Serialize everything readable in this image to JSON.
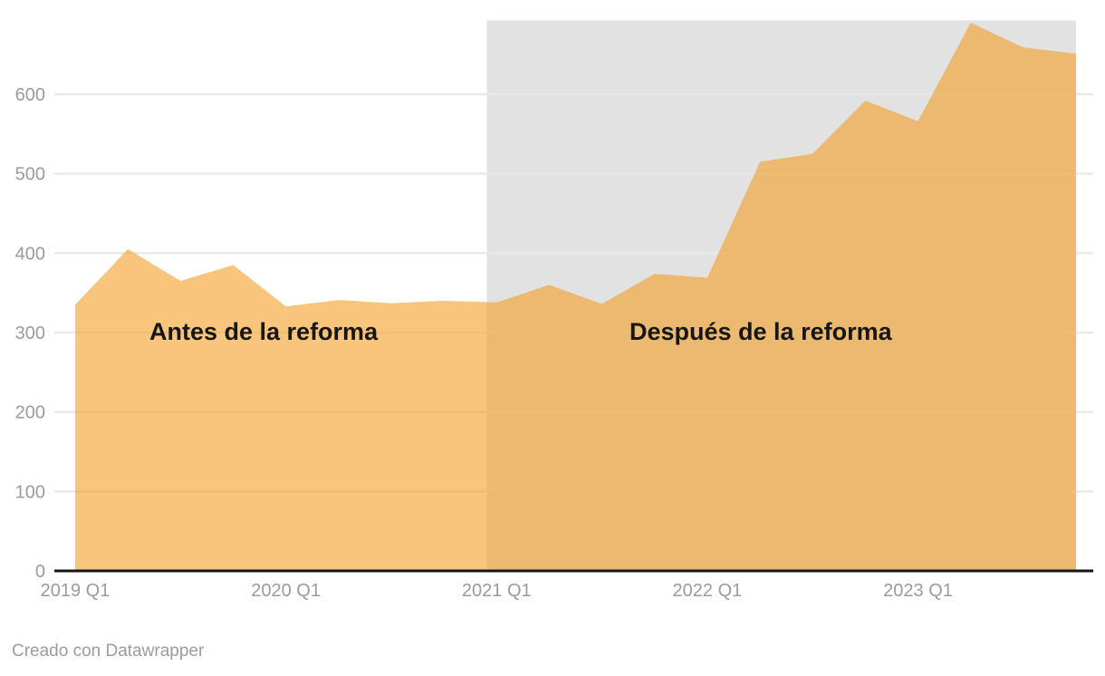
{
  "page": {
    "background_color": "#ffffff"
  },
  "footer": {
    "attribution": "Creado con Datawrapper"
  },
  "chart_data": {
    "type": "area",
    "categories": [
      "2019 Q1",
      "2019 Q2",
      "2019 Q3",
      "2019 Q4",
      "2020 Q1",
      "2020 Q2",
      "2020 Q3",
      "2020 Q4",
      "2021 Q1",
      "2021 Q2",
      "2021 Q3",
      "2021 Q4",
      "2022 Q1",
      "2022 Q2",
      "2022 Q3",
      "2022 Q4",
      "2023 Q1",
      "2023 Q2",
      "2023 Q3",
      "2023 Q4"
    ],
    "values": [
      335,
      405,
      365,
      385,
      333,
      341,
      337,
      340,
      338,
      360,
      336,
      374,
      369,
      515,
      525,
      592,
      566,
      690,
      659,
      651
    ],
    "x_tick_labels": [
      "2019 Q1",
      "2020 Q1",
      "2021 Q1",
      "2022 Q1",
      "2023 Q1"
    ],
    "y_ticks": [
      0,
      100,
      200,
      300,
      400,
      500,
      600
    ],
    "ylim": [
      0,
      693
    ],
    "grid": true,
    "legend": "none",
    "title": "",
    "xlabel": "",
    "ylabel": "",
    "area_color": "#F39E26",
    "area_opacity": 0.6,
    "highlight_range": {
      "from": "2021 Q1",
      "to": "2023 Q4",
      "color": "#e2e2e2"
    },
    "annotations": [
      {
        "text": "Antes de la reforma",
        "x": 165,
        "y": 353
      },
      {
        "text": "Después de la reforma",
        "x": 695,
        "y": 353
      }
    ],
    "gridline_color": "#e9e9e9",
    "axis_line_color": "#151515",
    "tick_label_color": "#9b9b9b"
  }
}
